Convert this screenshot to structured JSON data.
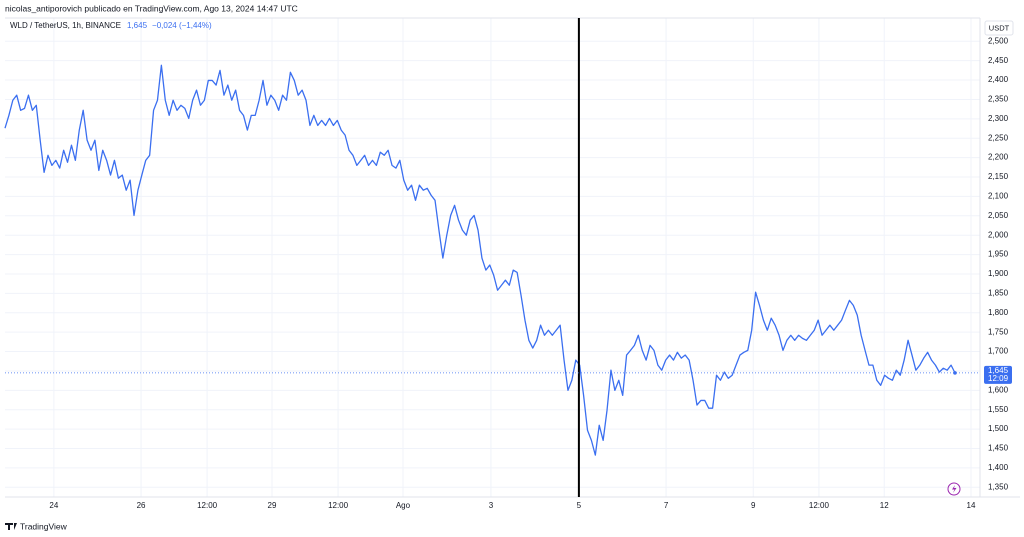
{
  "chart_data": {
    "type": "line",
    "header": "nicolas_antiporovich publicado en TradingView.com, Ago 13, 2024 14:47 UTC",
    "legend": {
      "symbol": "WLD / TetherUS, 1h, BINANCE",
      "last": "1,645",
      "change": "−0,024 (−1,44%)"
    },
    "currency": "USDT",
    "brand": "TradingView",
    "series": [
      {
        "name": "WLD / TetherUS",
        "color": "#3b6ff0",
        "values": [
          2.276,
          2.309,
          2.348,
          2.361,
          2.322,
          2.327,
          2.361,
          2.322,
          2.335,
          2.245,
          2.162,
          2.206,
          2.18,
          2.193,
          2.173,
          2.219,
          2.188,
          2.232,
          2.193,
          2.271,
          2.322,
          2.245,
          2.219,
          2.245,
          2.167,
          2.219,
          2.193,
          2.155,
          2.193,
          2.147,
          2.155,
          2.116,
          2.142,
          2.051,
          2.116,
          2.155,
          2.193,
          2.206,
          2.322,
          2.348,
          2.438,
          2.348,
          2.309,
          2.348,
          2.322,
          2.335,
          2.327,
          2.301,
          2.348,
          2.374,
          2.335,
          2.348,
          2.399,
          2.399,
          2.387,
          2.425,
          2.361,
          2.387,
          2.348,
          2.374,
          2.322,
          2.309,
          2.271,
          2.309,
          2.309,
          2.348,
          2.399,
          2.335,
          2.361,
          2.348,
          2.322,
          2.361,
          2.348,
          2.42,
          2.399,
          2.361,
          2.374,
          2.348,
          2.283,
          2.309,
          2.283,
          2.296,
          2.283,
          2.301,
          2.283,
          2.296,
          2.271,
          2.258,
          2.219,
          2.206,
          2.18,
          2.193,
          2.206,
          2.18,
          2.193,
          2.18,
          2.214,
          2.206,
          2.219,
          2.18,
          2.173,
          2.193,
          2.142,
          2.116,
          2.129,
          2.09,
          2.129,
          2.116,
          2.121,
          2.103,
          2.09,
          2.013,
          1.941,
          2.0,
          2.051,
          2.077,
          2.039,
          2.013,
          2.0,
          2.039,
          2.051,
          2.013,
          1.941,
          1.91,
          1.923,
          1.897,
          1.858,
          1.871,
          1.884,
          1.871,
          1.91,
          1.904,
          1.845,
          1.781,
          1.729,
          1.709,
          1.729,
          1.768,
          1.742,
          1.755,
          1.742,
          1.755,
          1.768,
          1.678,
          1.6,
          1.626,
          1.678,
          1.665,
          1.587,
          1.497,
          1.471,
          1.433,
          1.51,
          1.471,
          1.549,
          1.652,
          1.6,
          1.626,
          1.587,
          1.691,
          1.703,
          1.716,
          1.742,
          1.703,
          1.678,
          1.716,
          1.703,
          1.665,
          1.652,
          1.678,
          1.691,
          1.678,
          1.698,
          1.683,
          1.691,
          1.678,
          1.626,
          1.562,
          1.574,
          1.574,
          1.554,
          1.554,
          1.639,
          1.626,
          1.647,
          1.631,
          1.639,
          1.665,
          1.691,
          1.698,
          1.703,
          1.755,
          1.853,
          1.819,
          1.781,
          1.755,
          1.786,
          1.768,
          1.742,
          1.703,
          1.729,
          1.742,
          1.729,
          1.742,
          1.734,
          1.729,
          1.742,
          1.755,
          1.781,
          1.742,
          1.755,
          1.768,
          1.755,
          1.768,
          1.781,
          1.807,
          1.832,
          1.819,
          1.794,
          1.742,
          1.703,
          1.665,
          1.665,
          1.626,
          1.613,
          1.639,
          1.631,
          1.626,
          1.652,
          1.639,
          1.678,
          1.729,
          1.691,
          1.652,
          1.665,
          1.683,
          1.698,
          1.678,
          1.665,
          1.647,
          1.657,
          1.652,
          1.665,
          1.645
        ]
      }
    ],
    "last_value": {
      "value": 1.645,
      "label": "1,645"
    },
    "countdown": "12:09",
    "vertical_line": 146.8,
    "xlim": [
      0,
      249.4
    ],
    "xticks": [
      {
        "value": 12.5,
        "label": "24"
      },
      {
        "value": 34.8,
        "label": "26"
      },
      {
        "value": 51.7,
        "label": "12:00"
      },
      {
        "value": 68.3,
        "label": "29"
      },
      {
        "value": 85.2,
        "label": "12:00"
      },
      {
        "value": 101.8,
        "label": "Ago"
      },
      {
        "value": 124.3,
        "label": "3"
      },
      {
        "value": 146.8,
        "label": "5"
      },
      {
        "value": 169.1,
        "label": "7"
      },
      {
        "value": 191.4,
        "label": "9"
      },
      {
        "value": 208.2,
        "label": "12:00"
      },
      {
        "value": 224.9,
        "label": "12"
      },
      {
        "value": 247.1,
        "label": "14"
      }
    ],
    "ylim": [
      1.325,
      2.56
    ],
    "yticks": [
      {
        "value": 1.35,
        "label": "1,350"
      },
      {
        "value": 1.4,
        "label": "1,400"
      },
      {
        "value": 1.45,
        "label": "1,450"
      },
      {
        "value": 1.5,
        "label": "1,500"
      },
      {
        "value": 1.55,
        "label": "1,550"
      },
      {
        "value": 1.6,
        "label": "1,600"
      },
      {
        "value": 1.65,
        "label": "1,650"
      },
      {
        "value": 1.7,
        "label": "1,700"
      },
      {
        "value": 1.75,
        "label": "1,750"
      },
      {
        "value": 1.8,
        "label": "1,800"
      },
      {
        "value": 1.85,
        "label": "1,850"
      },
      {
        "value": 1.9,
        "label": "1,900"
      },
      {
        "value": 1.95,
        "label": "1,950"
      },
      {
        "value": 2.0,
        "label": "2,000"
      },
      {
        "value": 2.05,
        "label": "2,050"
      },
      {
        "value": 2.1,
        "label": "2,100"
      },
      {
        "value": 2.15,
        "label": "2,150"
      },
      {
        "value": 2.2,
        "label": "2,200"
      },
      {
        "value": 2.25,
        "label": "2,250"
      },
      {
        "value": 2.3,
        "label": "2,300"
      },
      {
        "value": 2.35,
        "label": "2,350"
      },
      {
        "value": 2.4,
        "label": "2,400"
      },
      {
        "value": 2.45,
        "label": "2,450"
      },
      {
        "value": 2.5,
        "label": "2,500"
      }
    ],
    "grid": true
  }
}
